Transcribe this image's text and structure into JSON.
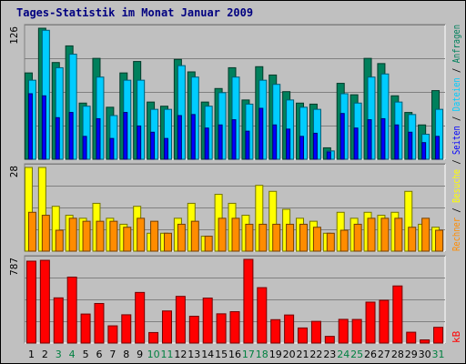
{
  "title": "Tages-Statistik im Monat Januar 2009",
  "colors": {
    "frame_bg": "#c0c0c0",
    "panel_bg": "#c0c0c0",
    "title": "#000080",
    "grid": "#808080",
    "anfragen": "#00805c",
    "dateien": "#00ccff",
    "seiten": "#0000ff",
    "besuche": "#ffff00",
    "rechner": "#ff8c00",
    "kb": "#ff0000",
    "weekday_label": "#000000",
    "weekend_label": "#008040",
    "bar_outline": "#000000"
  },
  "chart_data": [
    {
      "type": "bar",
      "id": "requests",
      "ymax_label": "126",
      "ylim": [
        0,
        126
      ],
      "categories": [
        "1",
        "2",
        "3",
        "4",
        "5",
        "6",
        "7",
        "8",
        "9",
        "10",
        "11",
        "12",
        "13",
        "14",
        "15",
        "16",
        "17",
        "18",
        "19",
        "20",
        "21",
        "22",
        "23",
        "24",
        "25",
        "26",
        "27",
        "28",
        "29",
        "30",
        "31"
      ],
      "series": [
        {
          "name": "Anfragen",
          "values": [
            83,
            126,
            93,
            109,
            54,
            97,
            50,
            83,
            94,
            55,
            51,
            96,
            84,
            55,
            68,
            88,
            57,
            89,
            81,
            65,
            54,
            53,
            11,
            73,
            62,
            97,
            92,
            61,
            45,
            33,
            66
          ]
        },
        {
          "name": "Dateien",
          "values": [
            76,
            124,
            88,
            101,
            51,
            79,
            42,
            76,
            76,
            48,
            48,
            90,
            79,
            51,
            64,
            79,
            53,
            76,
            72,
            57,
            50,
            48,
            8,
            63,
            54,
            79,
            82,
            55,
            43,
            24,
            48
          ]
        },
        {
          "name": "Seiten",
          "values": [
            63,
            61,
            40,
            45,
            22,
            39,
            20,
            45,
            32,
            26,
            20,
            42,
            43,
            30,
            33,
            38,
            27,
            49,
            33,
            29,
            22,
            25,
            7,
            44,
            30,
            38,
            39,
            33,
            26,
            16,
            22
          ]
        }
      ],
      "legend_right": [
        "Anfragen",
        "Dateien",
        "Seiten"
      ]
    },
    {
      "type": "bar",
      "id": "visits",
      "ymax_label": "28",
      "ylim": [
        0,
        28
      ],
      "categories": [
        "1",
        "2",
        "3",
        "4",
        "5",
        "6",
        "7",
        "8",
        "9",
        "10",
        "11",
        "12",
        "13",
        "14",
        "15",
        "16",
        "17",
        "18",
        "19",
        "20",
        "21",
        "22",
        "23",
        "24",
        "25",
        "26",
        "27",
        "28",
        "29",
        "30",
        "31"
      ],
      "series": [
        {
          "name": "Besuche",
          "values": [
            28,
            28,
            15,
            12,
            11,
            16,
            11,
            9,
            15,
            6,
            6,
            11,
            16,
            5,
            19,
            16,
            12,
            22,
            20,
            14,
            11,
            10,
            6,
            13,
            11,
            13,
            12,
            13,
            20,
            9,
            8
          ]
        },
        {
          "name": "Rechner",
          "values": [
            13,
            12,
            7,
            11,
            10,
            10,
            10,
            8,
            11,
            10,
            6,
            9,
            10,
            5,
            11,
            11,
            9,
            9,
            9,
            9,
            9,
            8,
            6,
            7,
            9,
            11,
            11,
            11,
            8,
            11,
            7
          ]
        }
      ],
      "legend_right": [
        "Besuche",
        "Rechner"
      ]
    },
    {
      "type": "bar",
      "id": "kb",
      "ymax_label": "787",
      "ylim": [
        0,
        787
      ],
      "categories": [
        "1",
        "2",
        "3",
        "4",
        "5",
        "6",
        "7",
        "8",
        "9",
        "10",
        "11",
        "12",
        "13",
        "14",
        "15",
        "16",
        "17",
        "18",
        "19",
        "20",
        "21",
        "22",
        "23",
        "24",
        "25",
        "26",
        "27",
        "28",
        "29",
        "30",
        "31"
      ],
      "series": [
        {
          "name": "kB",
          "values": [
            770,
            778,
            425,
            620,
            273,
            372,
            162,
            266,
            476,
            99,
            302,
            439,
            252,
            423,
            275,
            295,
            787,
            521,
            220,
            264,
            142,
            204,
            63,
            223,
            222,
            385,
            402,
            537,
            102,
            30,
            148
          ]
        }
      ],
      "legend_right": [
        "kB"
      ]
    }
  ],
  "weekend_days": [
    "3",
    "4",
    "10",
    "11",
    "17",
    "18",
    "24",
    "25",
    "31"
  ]
}
